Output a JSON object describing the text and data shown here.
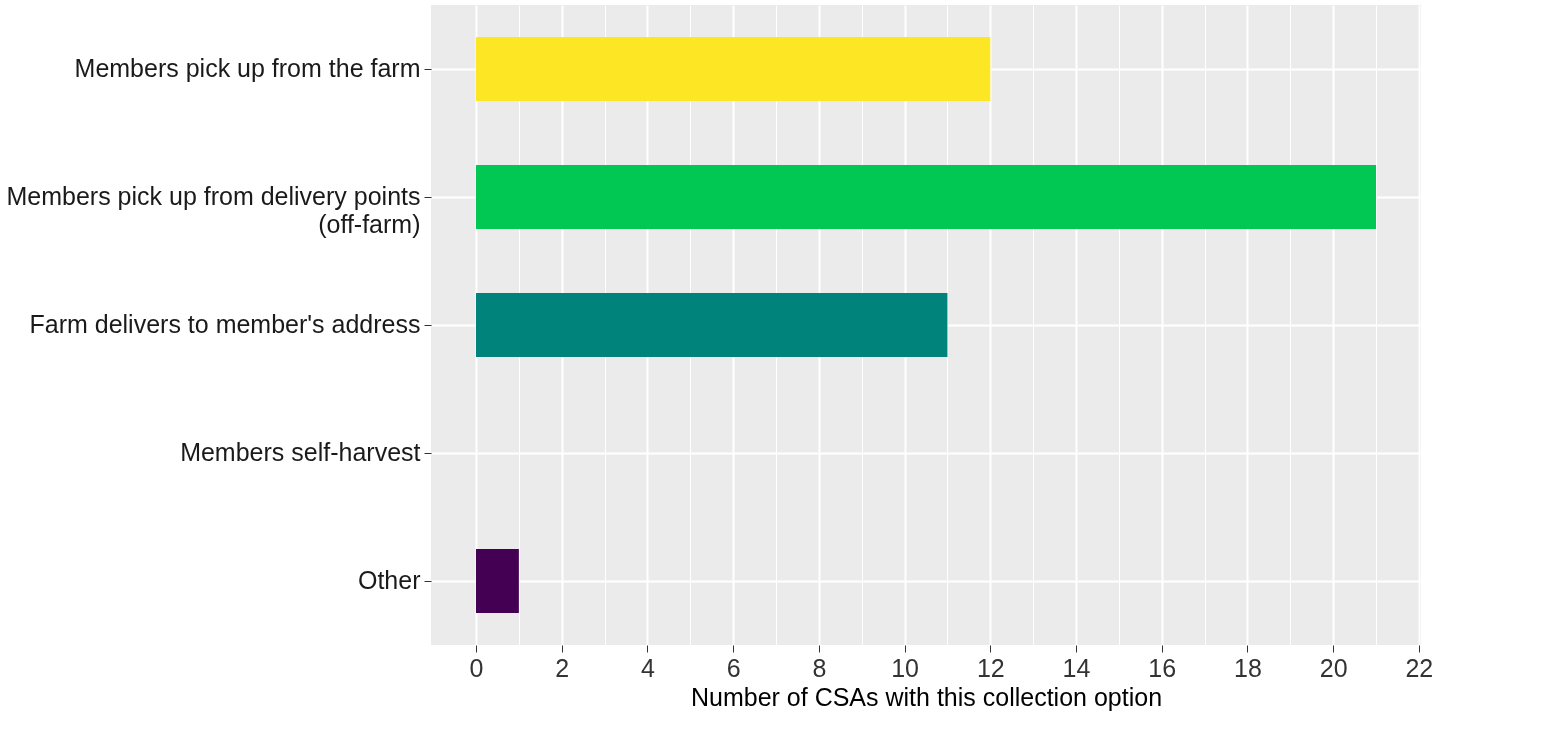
{
  "chart_data": {
    "type": "bar",
    "orientation": "horizontal",
    "categories": [
      "Members pick up from the farm",
      "Members pick up from delivery points (off-farm)",
      "Farm delivers to member's address",
      "Members self-harvest",
      "Other"
    ],
    "values": [
      12,
      21,
      11,
      0,
      1
    ],
    "colors": [
      "#fde725",
      "#00c853",
      "#00837b",
      "#3b528b",
      "#440154"
    ],
    "xlabel": "Number of CSAs with this collection option",
    "xlim": [
      -1.05,
      22.05
    ],
    "xticks": [
      0,
      {
        "value": 1,
        "label": null
      },
      2,
      {
        "value": 3,
        "label": null
      },
      4,
      {
        "value": 5,
        "label": null
      },
      6,
      {
        "value": 7,
        "label": null
      },
      8,
      {
        "value": 9,
        "label": null
      },
      10,
      {
        "value": 11,
        "label": null
      },
      12,
      {
        "value": 13,
        "label": null
      },
      14,
      {
        "value": 15,
        "label": null
      },
      16,
      {
        "value": 17,
        "label": null
      },
      18,
      {
        "value": 19,
        "label": null
      },
      20,
      {
        "value": 21,
        "label": null
      },
      22
    ],
    "grid": true
  }
}
